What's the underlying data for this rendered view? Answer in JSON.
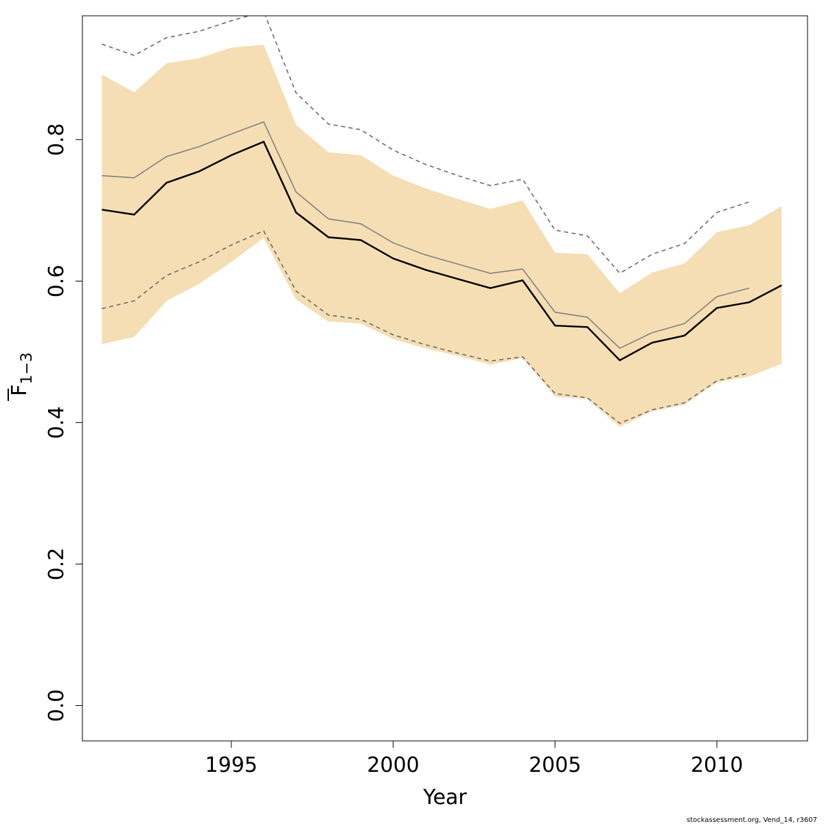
{
  "chart_data": {
    "type": "line",
    "title": "",
    "xlabel": "Year",
    "ylabel": "F",
    "ylabel_bar": true,
    "ylabel_subscript": "1−3",
    "xlim": [
      1990.4,
      2012.8
    ],
    "ylim": [
      -0.05,
      0.975
    ],
    "x_ticks": [
      1995,
      2000,
      2005,
      2010
    ],
    "y_ticks": [
      0.0,
      0.2,
      0.4,
      0.6,
      0.8
    ],
    "y_tick_labels": [
      "0.0",
      "0.2",
      "0.4",
      "0.6",
      "0.8"
    ],
    "grid": false,
    "colors": {
      "band": "#F5DEB3",
      "estimate": "#000000",
      "previous": "#808080",
      "previous_ci": "#696969"
    },
    "confidence_band": {
      "x": [
        1991,
        1992,
        1993,
        1994,
        1995,
        1996,
        1997,
        1998,
        1999,
        2000,
        2001,
        2002,
        2003,
        2004,
        2005,
        2006,
        2007,
        2008,
        2009,
        2010,
        2011,
        2012
      ],
      "lower": [
        0.511,
        0.521,
        0.572,
        0.596,
        0.627,
        0.661,
        0.574,
        0.543,
        0.54,
        0.518,
        0.505,
        0.494,
        0.482,
        0.491,
        0.437,
        0.433,
        0.394,
        0.416,
        0.425,
        0.457,
        0.465,
        0.483
      ],
      "upper": [
        0.892,
        0.867,
        0.908,
        0.915,
        0.93,
        0.934,
        0.821,
        0.782,
        0.778,
        0.749,
        0.731,
        0.716,
        0.702,
        0.714,
        0.64,
        0.638,
        0.583,
        0.612,
        0.625,
        0.669,
        0.679,
        0.706
      ]
    },
    "series": [
      {
        "role": "estimate",
        "x": [
          1991,
          1992,
          1993,
          1994,
          1995,
          1996,
          1997,
          1998,
          1999,
          2000,
          2001,
          2002,
          2003,
          2004,
          2005,
          2006,
          2007,
          2008,
          2009,
          2010,
          2011,
          2012
        ],
        "values": [
          0.701,
          0.694,
          0.739,
          0.755,
          0.778,
          0.797,
          0.697,
          0.662,
          0.658,
          0.632,
          0.616,
          0.603,
          0.59,
          0.601,
          0.537,
          0.535,
          0.488,
          0.513,
          0.523,
          0.562,
          0.57,
          0.594
        ]
      },
      {
        "role": "previous",
        "x": [
          1991,
          1992,
          1993,
          1994,
          1995,
          1996,
          1997,
          1998,
          1999,
          2000,
          2001,
          2002,
          2003,
          2004,
          2005,
          2006,
          2007,
          2008,
          2009,
          2010,
          2011
        ],
        "values": [
          0.749,
          0.746,
          0.776,
          0.79,
          0.808,
          0.825,
          0.726,
          0.688,
          0.681,
          0.654,
          0.637,
          0.624,
          0.611,
          0.617,
          0.556,
          0.549,
          0.505,
          0.527,
          0.54,
          0.578,
          0.59
        ]
      },
      {
        "role": "previous-upper",
        "dashed": true,
        "x": [
          1991,
          1992,
          1993,
          1994,
          1995,
          1996,
          1997,
          1998,
          1999,
          2000,
          2001,
          2002,
          2003,
          2004,
          2005,
          2006,
          2007,
          2008,
          2009,
          2010,
          2011
        ],
        "values": [
          0.935,
          0.919,
          0.944,
          0.953,
          0.968,
          0.981,
          0.866,
          0.822,
          0.814,
          0.785,
          0.765,
          0.749,
          0.735,
          0.744,
          0.672,
          0.664,
          0.611,
          0.638,
          0.653,
          0.697,
          0.712
        ]
      },
      {
        "role": "previous-lower",
        "dashed": true,
        "x": [
          1991,
          1992,
          1993,
          1994,
          1995,
          1996,
          1997,
          1998,
          1999,
          2000,
          2001,
          2002,
          2003,
          2004,
          2005,
          2006,
          2007,
          2008,
          2009,
          2010,
          2011
        ],
        "values": [
          0.561,
          0.572,
          0.608,
          0.627,
          0.651,
          0.671,
          0.586,
          0.552,
          0.546,
          0.524,
          0.51,
          0.498,
          0.487,
          0.493,
          0.441,
          0.435,
          0.399,
          0.418,
          0.428,
          0.459,
          0.47
        ]
      }
    ]
  },
  "footer": {
    "credit": "stockassessment.org, Vend_14, r3607"
  }
}
